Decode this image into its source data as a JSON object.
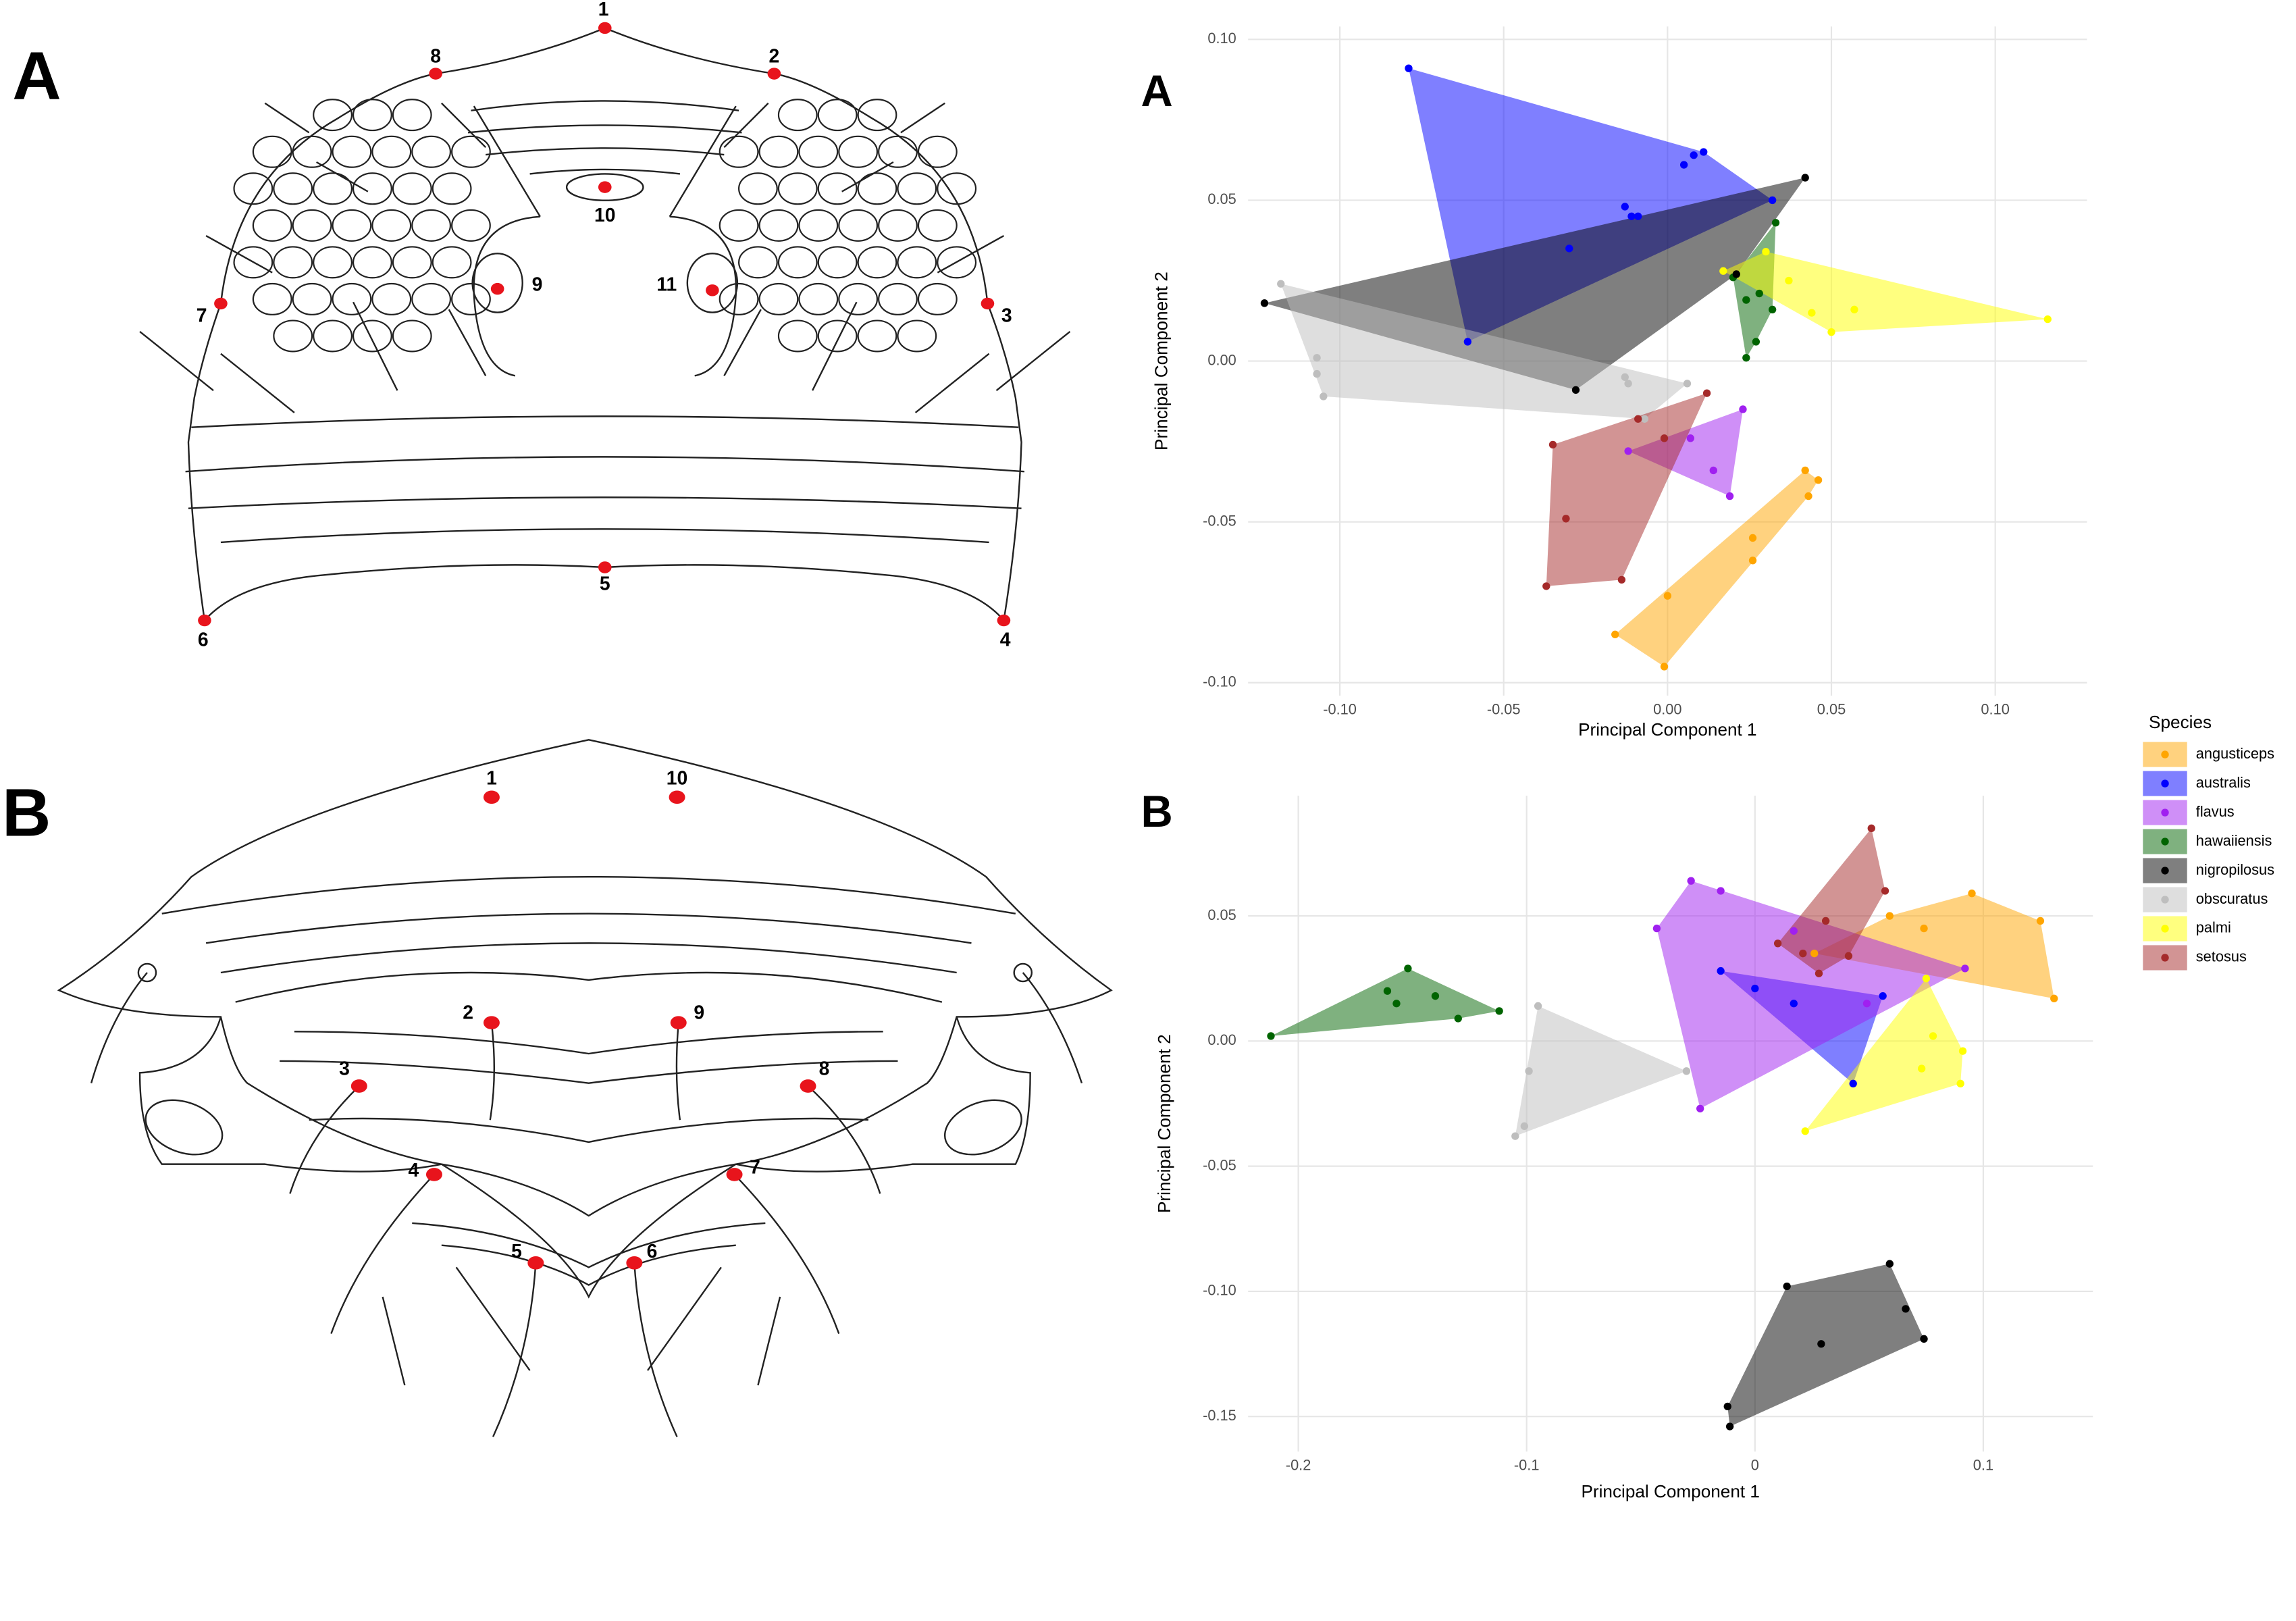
{
  "drawings": [
    {
      "panel": "A",
      "landmarks": [
        "1",
        "2",
        "3",
        "4",
        "5",
        "6",
        "7",
        "8",
        "9",
        "10",
        "11"
      ]
    },
    {
      "panel": "B",
      "landmarks": [
        "1",
        "2",
        "3",
        "4",
        "5",
        "6",
        "7",
        "8",
        "9",
        "10"
      ]
    }
  ],
  "chart_data": [
    {
      "type": "scatter",
      "panel": "A",
      "x_label": "Principal Component 1",
      "y_label": "Principal Component 2",
      "xlim": [
        -0.128,
        0.128
      ],
      "ylim": [
        -0.104,
        0.104
      ],
      "xticks": [
        {
          "value": -0.1,
          "label": "-0.10"
        },
        -0.05,
        {
          "value": 0.0,
          "label": "0.00"
        },
        0.05,
        {
          "value": 0.1,
          "label": "0.10"
        }
      ],
      "yticks": [
        {
          "value": -0.1,
          "label": "-0.10"
        },
        -0.05,
        {
          "value": 0.0,
          "label": "0.00"
        },
        0.05,
        {
          "value": 0.1,
          "label": "0.10"
        }
      ],
      "grid": true,
      "legend": "right",
      "legend_title": "Species",
      "series": [
        {
          "name": "angusticeps",
          "color": "#FFA500",
          "x": [
            0.042,
            0.046,
            0.043,
            0.026,
            0.026,
            0.0,
            -0.016,
            -0.001
          ],
          "values": [
            -0.034,
            -0.037,
            -0.042,
            -0.055,
            -0.062,
            -0.073,
            -0.085,
            -0.095
          ]
        },
        {
          "name": "australis",
          "color": "#0000FF",
          "x": [
            -0.079,
            0.011,
            0.008,
            0.005,
            -0.013,
            -0.011,
            -0.009,
            -0.03,
            -0.061,
            0.032
          ],
          "values": [
            0.091,
            0.065,
            0.064,
            0.061,
            0.048,
            0.045,
            0.045,
            0.035,
            0.006,
            0.05
          ]
        },
        {
          "name": "flavus",
          "color": "#A020F0",
          "x": [
            0.023,
            0.019,
            0.014,
            0.007,
            -0.012
          ],
          "values": [
            -0.015,
            -0.042,
            -0.034,
            -0.024,
            -0.028
          ]
        },
        {
          "name": "hawaiiensis",
          "color": "#006400",
          "x": [
            0.033,
            0.02,
            0.024,
            0.027,
            0.024,
            0.032,
            0.028
          ],
          "values": [
            0.043,
            0.026,
            0.019,
            0.006,
            0.001,
            0.016,
            0.021
          ]
        },
        {
          "name": "nigropilosus",
          "color": "#000000",
          "x": [
            0.042,
            -0.123,
            -0.028,
            0.021
          ],
          "values": [
            0.057,
            0.018,
            -0.009,
            0.027
          ]
        },
        {
          "name": "obscuratus",
          "color": "#BEBEBE",
          "x": [
            -0.118,
            -0.107,
            -0.107,
            -0.105,
            -0.013,
            -0.012,
            0.006,
            -0.007
          ],
          "values": [
            0.024,
            0.001,
            -0.004,
            -0.011,
            -0.005,
            -0.007,
            -0.007,
            -0.018
          ]
        },
        {
          "name": "palmi",
          "color": "#FFFF00",
          "x": [
            0.116,
            0.057,
            0.05,
            0.044,
            0.037,
            0.017,
            0.03
          ],
          "values": [
            0.013,
            0.016,
            0.009,
            0.015,
            0.025,
            0.028,
            0.034
          ]
        },
        {
          "name": "setosus",
          "color": "#A52A2A",
          "x": [
            0.012,
            -0.035,
            -0.037,
            -0.014,
            -0.031,
            -0.009,
            -0.001
          ],
          "values": [
            -0.01,
            -0.026,
            -0.07,
            -0.068,
            -0.049,
            -0.018,
            -0.024
          ]
        }
      ]
    },
    {
      "type": "scatter",
      "panel": "B",
      "x_label": "Principal Component 1",
      "y_label": "Principal Component 2",
      "xlim": [
        -0.222,
        0.148
      ],
      "ylim": [
        -0.164,
        0.098
      ],
      "xticks": [
        -0.2,
        -0.1,
        0,
        0.1
      ],
      "yticks": [
        -0.15,
        {
          "value": -0.1,
          "label": "-0.10"
        },
        -0.05,
        {
          "value": 0.0,
          "label": "0.00"
        },
        0.05
      ],
      "grid": true,
      "legend": "none",
      "series": [
        {
          "name": "angusticeps",
          "color": "#FFA500",
          "x": [
            0.095,
            0.125,
            0.131,
            0.059,
            0.074,
            0.026
          ],
          "values": [
            0.059,
            0.048,
            0.017,
            0.05,
            0.045,
            0.035
          ]
        },
        {
          "name": "australis",
          "color": "#0000FF",
          "x": [
            -0.015,
            0.0,
            0.017,
            0.043,
            0.056
          ],
          "values": [
            0.028,
            0.021,
            0.015,
            -0.017,
            0.018
          ]
        },
        {
          "name": "flavus",
          "color": "#A020F0",
          "x": [
            -0.043,
            -0.028,
            -0.015,
            0.092,
            -0.024,
            0.017,
            0.049
          ],
          "values": [
            0.045,
            0.064,
            0.06,
            0.029,
            -0.027,
            0.044,
            0.015
          ]
        },
        {
          "name": "hawaiiensis",
          "color": "#006400",
          "x": [
            -0.212,
            -0.152,
            -0.112,
            -0.13,
            -0.14,
            -0.161,
            -0.157
          ],
          "values": [
            0.002,
            0.029,
            0.012,
            0.009,
            0.018,
            0.02,
            0.015
          ]
        },
        {
          "name": "nigropilosus",
          "color": "#000000",
          "x": [
            -0.011,
            -0.012,
            0.014,
            0.059,
            0.066,
            0.074,
            0.029
          ],
          "values": [
            -0.154,
            -0.146,
            -0.098,
            -0.089,
            -0.107,
            -0.119,
            -0.121
          ]
        },
        {
          "name": "obscuratus",
          "color": "#BEBEBE",
          "x": [
            -0.095,
            -0.03,
            -0.105,
            -0.101,
            -0.099
          ],
          "values": [
            0.014,
            -0.012,
            -0.038,
            -0.034,
            -0.012
          ]
        },
        {
          "name": "palmi",
          "color": "#FFFF00",
          "x": [
            0.075,
            0.091,
            0.09,
            0.022,
            0.073,
            0.078
          ],
          "values": [
            0.025,
            -0.004,
            -0.017,
            -0.036,
            -0.011,
            0.002
          ]
        },
        {
          "name": "setosus",
          "color": "#A52A2A",
          "x": [
            0.051,
            0.057,
            0.031,
            0.01,
            0.028,
            0.041,
            0.021
          ],
          "values": [
            0.085,
            0.06,
            0.048,
            0.039,
            0.027,
            0.034,
            0.035
          ]
        }
      ]
    }
  ]
}
